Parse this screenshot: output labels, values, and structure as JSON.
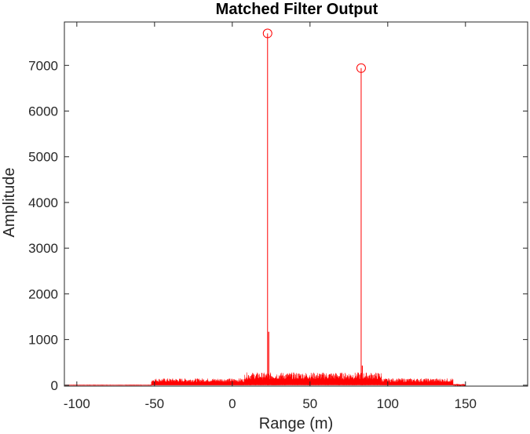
{
  "chart_data": {
    "type": "line",
    "title": "Matched Filter Output",
    "xlabel": "Range (m)",
    "ylabel": "Amplitude",
    "xlim": [
      -108,
      190
    ],
    "ylim": [
      -20,
      7950
    ],
    "xticks": [
      -100,
      -50,
      0,
      50,
      100,
      150
    ],
    "yticks": [
      0,
      1000,
      2000,
      3000,
      4000,
      5000,
      6000,
      7000
    ],
    "grid": false,
    "line_color": "#ff0000",
    "noise_segments": [
      {
        "x": [
          -108,
          -52
        ],
        "amplitude": 5
      },
      {
        "x": [
          -52,
          8
        ],
        "amplitude": 150
      },
      {
        "x": [
          8,
          96
        ],
        "amplitude": 280
      },
      {
        "x": [
          96,
          142
        ],
        "amplitude": 150
      },
      {
        "x": [
          142,
          150
        ],
        "amplitude": 20
      }
    ],
    "series": [
      {
        "x": [
          22.7,
          82.9
        ],
        "y": [
          7700,
          6940
        ],
        "marker": "circle",
        "color": "#ff0000"
      }
    ],
    "sidelobes": [
      {
        "x": 22.7,
        "y": 1170
      },
      {
        "x": 82.9,
        "y": 430
      }
    ]
  }
}
